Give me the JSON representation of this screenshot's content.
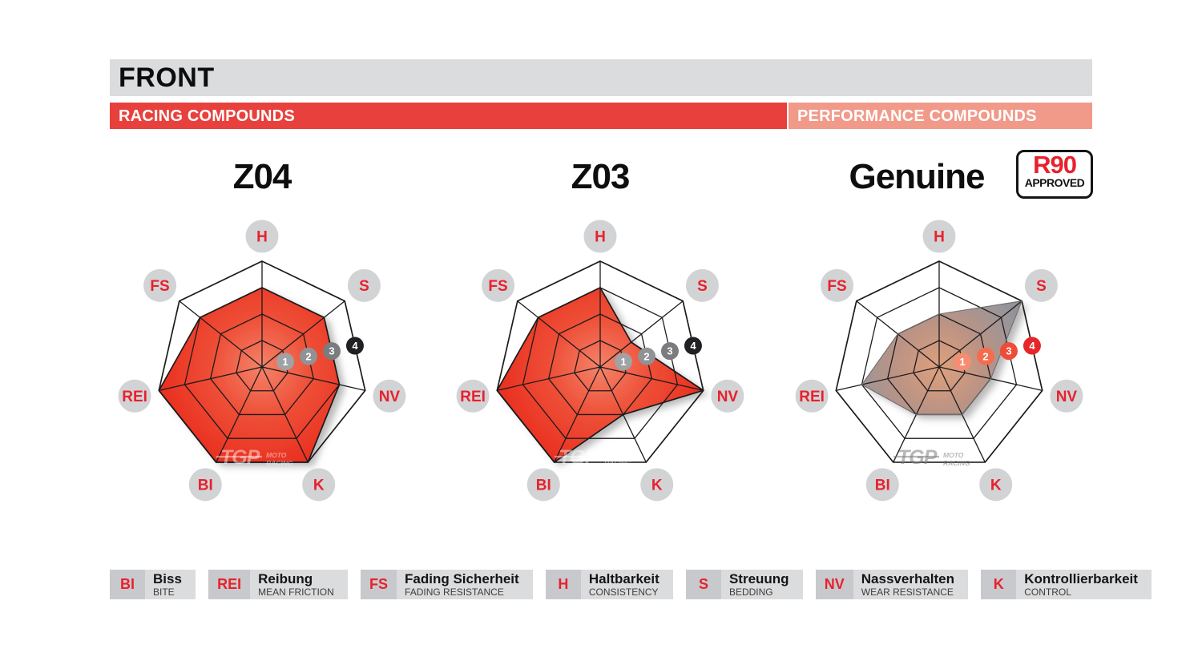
{
  "page": {
    "front_label": "FRONT",
    "racing_label": "RACING COMPOUNDS",
    "performance_label": "PERFORMANCE COMPOUNDS",
    "colors": {
      "header_gray": "#dbdcde",
      "racing_red": "#e8413d",
      "performance_salmon": "#f19a8a",
      "accent_red": "#e8212d",
      "label_circle_gray": "#d2d3d5"
    }
  },
  "r90_badge": {
    "line1": "R90",
    "line2": "APPROVED"
  },
  "watermark": {
    "brand": "TGP",
    "sub1": "MOTO",
    "sub2": "RACING"
  },
  "chart_data": [
    {
      "type": "radar",
      "title": "Z04",
      "group": "RACING COMPOUNDS",
      "categories": [
        "H",
        "S",
        "NV",
        "K",
        "BI",
        "REI",
        "FS"
      ],
      "values": [
        3,
        3,
        3,
        4,
        4,
        4,
        3
      ],
      "scale_min": 0,
      "scale_max": 4,
      "scale_ticks": [
        1,
        2,
        3,
        4
      ],
      "tick_colors": [
        "#a0a2a5",
        "#909295",
        "#7a7c7f",
        "#202023"
      ],
      "fill_stops": [
        {
          "offset": "0%",
          "color": "#f4836a"
        },
        {
          "offset": "45%",
          "color": "#ee4f37"
        },
        {
          "offset": "100%",
          "color": "#e92b1d"
        }
      ],
      "stroke": "#1a1a1a",
      "stroke_width": 1.7,
      "watermark_color": "rgba(255,255,255,0.45)"
    },
    {
      "type": "radar",
      "title": "Z03",
      "group": "RACING COMPOUNDS",
      "categories": [
        "H",
        "S",
        "NV",
        "K",
        "BI",
        "REI",
        "FS"
      ],
      "values": [
        3,
        1.5,
        4,
        2,
        4,
        4,
        3
      ],
      "scale_min": 0,
      "scale_max": 4,
      "scale_ticks": [
        1,
        2,
        3,
        4
      ],
      "tick_colors": [
        "#a0a2a5",
        "#909295",
        "#7a7c7f",
        "#202023"
      ],
      "fill_stops": [
        {
          "offset": "0%",
          "color": "#f4836a"
        },
        {
          "offset": "45%",
          "color": "#ee4f37"
        },
        {
          "offset": "100%",
          "color": "#e92b1d"
        }
      ],
      "stroke": "#1a1a1a",
      "stroke_width": 1.7,
      "watermark_color": "rgba(255,255,255,0.45)"
    },
    {
      "type": "radar",
      "title": "Genuine",
      "group": "PERFORMANCE COMPOUNDS",
      "badge": "R90 APPROVED",
      "categories": [
        "H",
        "S",
        "NV",
        "K",
        "BI",
        "REI",
        "FS"
      ],
      "values": [
        2,
        4,
        2,
        2,
        2,
        3,
        2
      ],
      "scale_min": 0,
      "scale_max": 4,
      "scale_ticks": [
        1,
        2,
        3,
        4
      ],
      "tick_colors": [
        "#f68d72",
        "#f46c50",
        "#ef4b36",
        "#e72629"
      ],
      "fill_stops": [
        {
          "offset": "0%",
          "color": "#dfa07c"
        },
        {
          "offset": "40%",
          "color": "#bb9384"
        },
        {
          "offset": "78%",
          "color": "#98959a"
        },
        {
          "offset": "100%",
          "color": "#8c8c90"
        }
      ],
      "stroke": "#6e6e70",
      "stroke_width": 1.1,
      "watermark_color": "rgba(125,125,128,0.55)"
    }
  ],
  "legend": {
    "items": [
      {
        "abbr": "BI",
        "de": "Biss",
        "en": "BITE"
      },
      {
        "abbr": "REI",
        "de": "Reibung",
        "en": "MEAN FRICTION"
      },
      {
        "abbr": "FS",
        "de": "Fading Sicherheit",
        "en": "FADING RESISTANCE"
      },
      {
        "abbr": "H",
        "de": "Haltbarkeit",
        "en": "CONSISTENCY"
      },
      {
        "abbr": "S",
        "de": "Streuung",
        "en": "BEDDING"
      },
      {
        "abbr": "NV",
        "de": "Nassverhalten",
        "en": "WEAR RESISTANCE"
      },
      {
        "abbr": "K",
        "de": "Kontrollierbarkeit",
        "en": "CONTROL"
      }
    ]
  }
}
